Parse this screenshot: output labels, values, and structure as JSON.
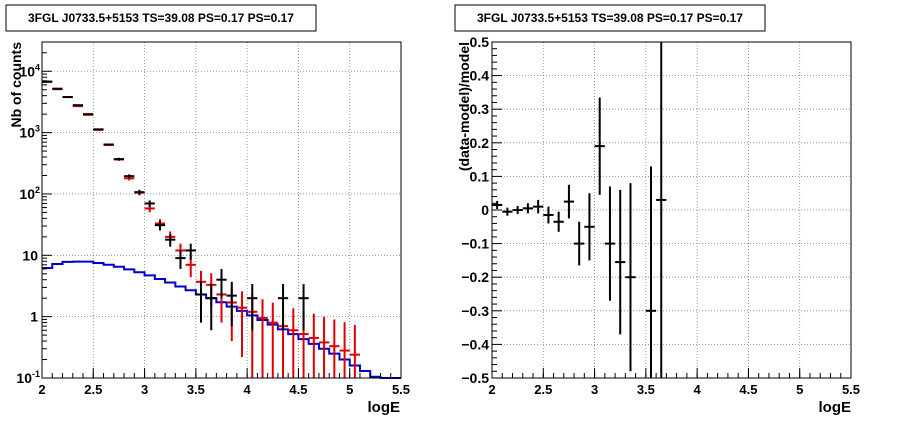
{
  "colors": {
    "data": "#000000",
    "model": "#dd0000",
    "background": "#0000cc",
    "grid": "#808080"
  },
  "chart_data": [
    {
      "type": "scatter",
      "title": "3FGL J0733.5+5153 TS=39.08 PS=0.17 PS=0.17",
      "xlabel": "logE",
      "ylabel": "Nb of counts",
      "xlim": [
        2,
        5.5
      ],
      "ylim": [
        0.1,
        30000
      ],
      "yscale": "log",
      "grid": true,
      "x_ticks": [
        "2",
        "2.5",
        "3",
        "3.5",
        "4",
        "4.5",
        "5",
        "5.5"
      ],
      "y_ticks": [
        {
          "value": 0.1,
          "label": "10",
          "exp": "-1"
        },
        {
          "value": 1,
          "label": "1",
          "exp": ""
        },
        {
          "value": 10,
          "label": "10",
          "exp": ""
        },
        {
          "value": 100,
          "label": "10",
          "exp": "2"
        },
        {
          "value": 1000,
          "label": "10",
          "exp": "3"
        },
        {
          "value": 10000,
          "label": "10",
          "exp": "4"
        }
      ],
      "bin_width": 0.1,
      "series": [
        {
          "role": "data",
          "x": [
            2.05,
            2.15,
            2.25,
            2.35,
            2.45,
            2.55,
            2.65,
            2.75,
            2.85,
            2.95,
            3.05,
            3.15,
            3.25,
            3.35,
            3.45,
            3.55,
            3.65,
            3.75,
            3.85,
            4.05,
            4.35,
            4.55
          ],
          "y": [
            6800,
            5200,
            3800,
            2800,
            2000,
            1130,
            640,
            370,
            195,
            107,
            70,
            31,
            18,
            9,
            12,
            2.3,
            2,
            4,
            2.2,
            2,
            2,
            2
          ],
          "err_low": [
            80,
            70,
            60,
            50,
            45,
            34,
            25,
            19,
            14,
            10,
            8.4,
            5.6,
            4.2,
            3,
            3.5,
            1.5,
            1.4,
            2,
            1.5,
            1.4,
            1.4,
            1.4
          ],
          "err_high": [
            80,
            70,
            60,
            50,
            45,
            34,
            25,
            19,
            14,
            10,
            8.4,
            5.6,
            4.2,
            3,
            3.5,
            1.5,
            1.4,
            2,
            1.5,
            1.4,
            1.4,
            1.4
          ]
        },
        {
          "role": "model",
          "x": [
            2.05,
            2.15,
            2.25,
            2.35,
            2.45,
            2.55,
            2.65,
            2.75,
            2.85,
            2.95,
            3.05,
            3.15,
            3.25,
            3.35,
            3.45,
            3.55,
            3.65,
            3.75,
            3.85,
            3.95,
            4.05,
            4.15,
            4.25,
            4.35,
            4.45,
            4.55,
            4.65,
            4.75,
            4.85,
            4.95,
            5.05
          ],
          "y": [
            6700,
            5100,
            3800,
            2700,
            1950,
            1110,
            630,
            365,
            180,
            105,
            58,
            33,
            20,
            12,
            7,
            3.7,
            3.3,
            2.3,
            1.7,
            1.4,
            1.2,
            0.95,
            0.8,
            0.7,
            0.6,
            0.52,
            0.45,
            0.38,
            0.33,
            0.28,
            0.24
          ],
          "err_low": [
            80,
            70,
            60,
            50,
            45,
            34,
            25,
            19,
            14,
            10,
            7.6,
            5.7,
            4.5,
            3.5,
            2.6,
            1.9,
            1.8,
            1.5,
            1.3,
            1.18,
            1.1,
            0.97,
            0.89,
            0.84,
            0.77,
            0.72,
            0.67,
            0.62,
            0.57,
            0.53,
            0.49
          ],
          "err_high": [
            80,
            70,
            60,
            50,
            45,
            34,
            25,
            19,
            14,
            10,
            7.6,
            5.7,
            4.5,
            3.5,
            2.6,
            1.9,
            1.8,
            1.5,
            1.3,
            1.18,
            1.1,
            0.97,
            0.89,
            0.84,
            0.77,
            0.72,
            0.67,
            0.62,
            0.57,
            0.53,
            0.49
          ]
        },
        {
          "role": "background",
          "x": [
            2.0,
            2.1,
            2.2,
            2.3,
            2.4,
            2.5,
            2.6,
            2.7,
            2.8,
            2.9,
            3.0,
            3.1,
            3.2,
            3.3,
            3.4,
            3.5,
            3.6,
            3.7,
            3.8,
            3.9,
            4.0,
            4.1,
            4.2,
            4.3,
            4.4,
            4.5,
            4.6,
            4.7,
            4.8,
            4.9,
            5.0,
            5.1,
            5.2,
            5.3,
            5.4
          ],
          "y": [
            6.2,
            7.2,
            7.8,
            7.9,
            7.9,
            7.5,
            7.0,
            6.5,
            5.9,
            5.3,
            4.7,
            4.1,
            3.6,
            3.1,
            2.7,
            2.3,
            2.0,
            1.72,
            1.46,
            1.24,
            1.05,
            0.88,
            0.74,
            0.62,
            0.52,
            0.43,
            0.36,
            0.3,
            0.25,
            0.2,
            0.16,
            0.13,
            0.105,
            0.1,
            0.1
          ]
        }
      ]
    },
    {
      "type": "scatter",
      "title": "3FGL J0733.5+5153 TS=39.08 PS=0.17 PS=0.17",
      "xlabel": "logE",
      "ylabel": "(data-model)/model",
      "xlim": [
        2,
        5.5
      ],
      "ylim": [
        -0.5,
        0.5
      ],
      "grid": true,
      "x_ticks": [
        "2",
        "2.5",
        "3",
        "3.5",
        "4",
        "4.5",
        "5",
        "5.5"
      ],
      "y_ticks": [
        "−0.5",
        "−0.4",
        "−0.3",
        "−0.2",
        "−0.1",
        "0",
        "0.1",
        "0.2",
        "0.3",
        "0.4",
        "0.5"
      ],
      "bin_width": 0.1,
      "series": [
        {
          "role": "residuals",
          "x": [
            2.05,
            2.15,
            2.25,
            2.35,
            2.45,
            2.55,
            2.65,
            2.75,
            2.85,
            2.95,
            3.05,
            3.15,
            3.25,
            3.35,
            3.55,
            3.65
          ],
          "y": [
            0.015,
            -0.005,
            0.0,
            0.005,
            0.01,
            -0.015,
            -0.035,
            0.025,
            -0.1,
            -0.05,
            0.19,
            -0.1,
            -0.155,
            -0.2,
            -0.3,
            0.03
          ],
          "err_low": [
            0.012,
            0.012,
            0.012,
            0.015,
            0.02,
            0.025,
            0.03,
            0.05,
            0.065,
            0.1,
            0.145,
            0.17,
            0.215,
            0.28,
            0.45,
            0.6
          ],
          "err_high": [
            0.012,
            0.012,
            0.012,
            0.015,
            0.02,
            0.025,
            0.03,
            0.05,
            0.065,
            0.1,
            0.145,
            0.17,
            0.215,
            0.28,
            0.43,
            0.47
          ]
        }
      ]
    }
  ]
}
